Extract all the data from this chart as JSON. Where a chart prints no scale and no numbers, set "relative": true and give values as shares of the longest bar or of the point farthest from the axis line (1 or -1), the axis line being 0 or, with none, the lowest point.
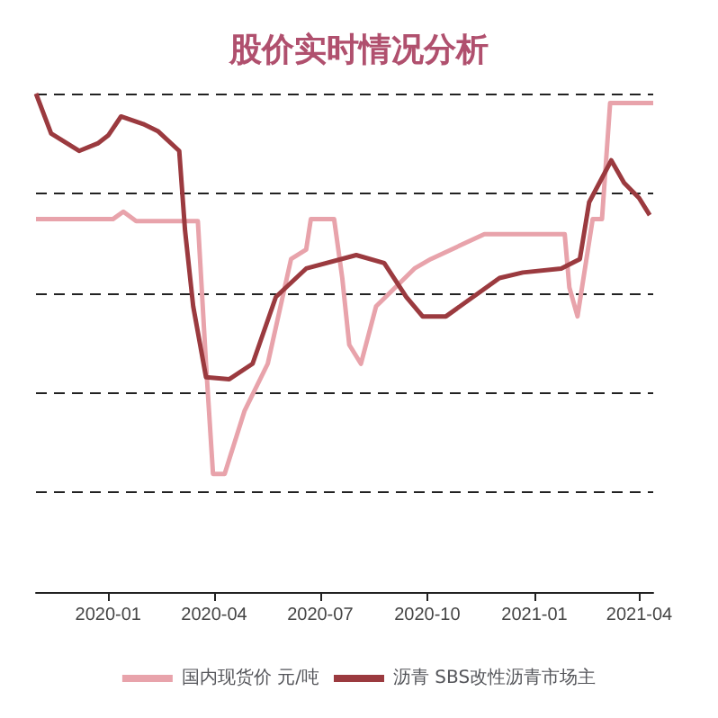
{
  "chart_data": {
    "type": "line",
    "title": "股价实时情况分析",
    "relative": true,
    "grid": "y",
    "legend": "bottom",
    "line_style": "solid",
    "marker": "none",
    "xlim": [
      "2019-10-31",
      "2021-04-13"
    ],
    "xticks": [
      "2020-01",
      "2020-04",
      "2020-07",
      "2020-10",
      "2021-01",
      "2021-04"
    ],
    "series": [
      {
        "name": "国内现货价 元/吨",
        "color": "#e8a3ab",
        "x": [
          "2019-10-31",
          "2020-01-05",
          "2020-01-14",
          "2020-01-25",
          "2020-03-11",
          "2020-03-18",
          "2020-03-25",
          "2020-03-31",
          "2020-04-10",
          "2020-04-27",
          "2020-05-17",
          "2020-06-06",
          "2020-06-19",
          "2020-06-23",
          "2020-07-13",
          "2020-07-20",
          "2020-07-26",
          "2020-08-05",
          "2020-08-18",
          "2020-09-20",
          "2020-10-04",
          "2020-11-19",
          "2021-01-27",
          "2021-01-31",
          "2021-02-07",
          "2021-02-20",
          "2021-02-28",
          "2021-03-07",
          "2021-04-13"
        ],
        "values": [
          0.748,
          0.748,
          0.763,
          0.744,
          0.744,
          0.744,
          0.458,
          0.237,
          0.237,
          0.363,
          0.458,
          0.668,
          0.687,
          0.748,
          0.748,
          0.63,
          0.496,
          0.458,
          0.573,
          0.649,
          0.668,
          0.718,
          0.718,
          0.611,
          0.553,
          0.748,
          0.748,
          0.981,
          0.981
        ]
      },
      {
        "name": "沥青 SBS改性沥青市场主",
        "color": "#9b3a3f",
        "x": [
          "2019-10-31",
          "2019-11-13",
          "2019-12-07",
          "2019-12-23",
          "2020-01-01",
          "2020-01-12",
          "2020-01-31",
          "2020-02-13",
          "2020-03-02",
          "2020-03-07",
          "2020-03-14",
          "2020-03-25",
          "2020-04-14",
          "2020-05-04",
          "2020-05-24",
          "2020-06-19",
          "2020-08-01",
          "2020-08-25",
          "2020-09-13",
          "2020-09-27",
          "2020-10-17",
          "2020-12-02",
          "2020-12-22",
          "2021-01-24",
          "2021-02-09",
          "2021-02-17",
          "2021-03-08",
          "2021-03-19",
          "2021-04-01",
          "2021-04-10"
        ],
        "values": [
          1.0,
          0.92,
          0.885,
          0.9,
          0.916,
          0.954,
          0.939,
          0.924,
          0.885,
          0.725,
          0.573,
          0.431,
          0.427,
          0.458,
          0.592,
          0.649,
          0.676,
          0.66,
          0.592,
          0.553,
          0.553,
          0.63,
          0.641,
          0.649,
          0.668,
          0.782,
          0.866,
          0.821,
          0.79,
          0.756
        ]
      }
    ]
  }
}
